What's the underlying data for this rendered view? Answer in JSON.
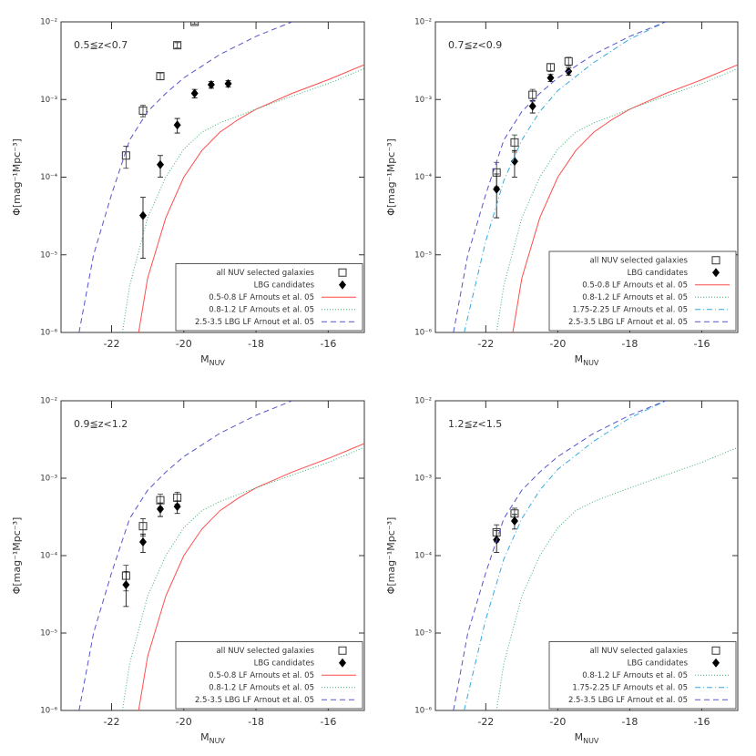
{
  "chart_data": [
    {
      "type": "scatter",
      "annotation": "0.5≦z<0.7",
      "xlabel": "M",
      "xlabel_sub": "NUV",
      "ylabel": "Φ[mag⁻¹Mpc⁻³]",
      "xlim": [
        -23.4,
        -15
      ],
      "xticks": [
        -22,
        -20,
        -18,
        -16
      ],
      "ylim": [
        1e-06,
        0.01
      ],
      "log_y": true,
      "legend": "lower right",
      "yticks": [
        {
          "value": 1e-06,
          "label": "10⁻⁶"
        },
        {
          "value": 1e-05,
          "label": "10⁻⁵"
        },
        {
          "value": 0.0001,
          "label": "10⁻⁴"
        },
        {
          "value": 0.001,
          "label": "10⁻³"
        },
        {
          "value": 0.01,
          "label": "10⁻²"
        }
      ],
      "series": [
        {
          "name": "all NUV selected galaxies",
          "color": "#333333",
          "marker": "square",
          "x": [
            -21.6,
            -21.13,
            -20.65,
            -20.18,
            -19.7
          ],
          "values": [
            0.00019,
            0.00072,
            0.002,
            0.005,
            0.01
          ],
          "errors": [
            6e-05,
            0.00012,
            0.0002,
            0.0004,
            0.0006
          ]
        },
        {
          "name": "LBG candidates",
          "color": "#000000",
          "marker": "diamond",
          "x": [
            -21.13,
            -20.65,
            -20.18,
            -19.7,
            -19.24,
            -18.77
          ],
          "values": [
            3.2e-05,
            0.000145,
            0.00047,
            0.0012,
            0.00155,
            0.0016
          ],
          "errors": [
            2.3e-05,
            4.5e-05,
            0.0001,
            0.00015,
            0.00015,
            0.00015
          ]
        },
        {
          "name": "0.5-0.8 LF Arnouts et al. 05",
          "color": "#ff4d4d",
          "dash": "solid",
          "x": [
            -21.25,
            -21,
            -20.5,
            -20,
            -19.5,
            -19,
            -18.5,
            -18,
            -17,
            -16,
            -15
          ],
          "values": [
            1e-06,
            5e-06,
            3e-05,
            0.0001,
            0.00022,
            0.00038,
            0.00055,
            0.00075,
            0.0012,
            0.0018,
            0.0028
          ]
        },
        {
          "name": "0.8-1.2 LF Arnouts et al. 05",
          "color": "#3cb371",
          "dash": "dotted",
          "x": [
            -21.7,
            -21.5,
            -21,
            -20.5,
            -20,
            -19.5,
            -19,
            -18,
            -17,
            -16,
            -15
          ],
          "values": [
            1e-06,
            4e-06,
            3e-05,
            0.0001,
            0.00023,
            0.00038,
            0.0005,
            0.00075,
            0.0011,
            0.0016,
            0.0025
          ]
        },
        {
          "name": "2.5-3.5 LBG LF Arnout et al. 05",
          "color": "#5555cc",
          "dash": "dashed",
          "x": [
            -22.9,
            -22.5,
            -22,
            -21.5,
            -21,
            -20.5,
            -20,
            -19,
            -18,
            -17
          ],
          "values": [
            1e-06,
            1e-05,
            6e-05,
            0.0003,
            0.0007,
            0.0012,
            0.0019,
            0.0038,
            0.0065,
            0.01
          ]
        }
      ]
    },
    {
      "type": "scatter",
      "annotation": "0.7≦z<0.9",
      "xlabel": "M",
      "xlabel_sub": "NUV",
      "ylabel": "Φ[mag⁻¹Mpc⁻³]",
      "xlim": [
        -23.4,
        -15
      ],
      "xticks": [
        -22,
        -20,
        -18,
        -16
      ],
      "ylim": [
        1e-06,
        0.01
      ],
      "log_y": true,
      "legend": "lower right",
      "yticks": [
        {
          "value": 1e-06,
          "label": "10⁻⁶"
        },
        {
          "value": 1e-05,
          "label": "10⁻⁵"
        },
        {
          "value": 0.0001,
          "label": "10⁻⁴"
        },
        {
          "value": 0.001,
          "label": "10⁻³"
        },
        {
          "value": 0.01,
          "label": "10⁻²"
        }
      ],
      "series": [
        {
          "name": "all NUV selected galaxies",
          "color": "#333333",
          "marker": "square",
          "x": [
            -21.7,
            -21.2,
            -20.7,
            -20.2,
            -19.7
          ],
          "values": [
            0.000115,
            0.00028,
            0.00115,
            0.0026,
            0.0031
          ],
          "errors": [
            4e-05,
            7e-05,
            0.0002,
            0.0003,
            0.0004
          ]
        },
        {
          "name": "LBG candidates",
          "color": "#000000",
          "marker": "diamond",
          "x": [
            -21.7,
            -21.2,
            -20.7,
            -20.2,
            -19.7
          ],
          "values": [
            7e-05,
            0.00016,
            0.00082,
            0.0019,
            0.0023
          ],
          "errors": [
            4e-05,
            6e-05,
            0.00015,
            0.0002,
            0.00025
          ]
        },
        {
          "name": "0.5-0.8 LF Arnouts et al. 05",
          "color": "#ff4d4d",
          "dash": "solid",
          "x": [
            -21.25,
            -21,
            -20.5,
            -20,
            -19.5,
            -19,
            -18.5,
            -18,
            -17,
            -16,
            -15
          ],
          "values": [
            1e-06,
            5e-06,
            3e-05,
            0.0001,
            0.00022,
            0.00038,
            0.00055,
            0.00075,
            0.0012,
            0.0018,
            0.0028
          ]
        },
        {
          "name": "0.8-1.2 LF Arnouts et al. 05",
          "color": "#3cb371",
          "dash": "dotted",
          "x": [
            -21.7,
            -21.5,
            -21,
            -20.5,
            -20,
            -19.5,
            -19,
            -18,
            -17,
            -16,
            -15
          ],
          "values": [
            1e-06,
            4e-06,
            3e-05,
            0.0001,
            0.00023,
            0.00038,
            0.0005,
            0.00075,
            0.0011,
            0.0016,
            0.0025
          ]
        },
        {
          "name": "1.75-2.25 LF Arnouts et al. 05",
          "color": "#33aadd",
          "dash": "dashdot",
          "x": [
            -22.6,
            -22,
            -21.5,
            -21,
            -20.5,
            -20,
            -19,
            -18,
            -17
          ],
          "values": [
            1e-06,
            1.5e-05,
            9e-05,
            0.0003,
            0.0007,
            0.0013,
            0.003,
            0.006,
            0.01
          ]
        },
        {
          "name": "2.5-3.5 LBG LF Arnout et al. 05",
          "color": "#5555cc",
          "dash": "dashed",
          "x": [
            -22.9,
            -22.5,
            -22,
            -21.5,
            -21,
            -20.5,
            -20,
            -19,
            -18,
            -17
          ],
          "values": [
            1e-06,
            1e-05,
            6e-05,
            0.0003,
            0.0007,
            0.0012,
            0.0019,
            0.0038,
            0.0065,
            0.01
          ]
        }
      ]
    },
    {
      "type": "scatter",
      "annotation": "0.9≦z<1.2",
      "xlabel": "M",
      "xlabel_sub": "NUV",
      "ylabel": "Φ[mag⁻¹Mpc⁻³]",
      "xlim": [
        -23.4,
        -15
      ],
      "xticks": [
        -22,
        -20,
        -18,
        -16
      ],
      "ylim": [
        1e-06,
        0.01
      ],
      "log_y": true,
      "legend": "lower right",
      "yticks": [
        {
          "value": 1e-06,
          "label": "10⁻⁶"
        },
        {
          "value": 1e-05,
          "label": "10⁻⁵"
        },
        {
          "value": 0.0001,
          "label": "10⁻⁴"
        },
        {
          "value": 0.001,
          "label": "10⁻³"
        },
        {
          "value": 0.01,
          "label": "10⁻²"
        }
      ],
      "series": [
        {
          "name": "all NUV selected galaxies",
          "color": "#333333",
          "marker": "square",
          "x": [
            -21.6,
            -21.13,
            -20.65,
            -20.18
          ],
          "values": [
            5.5e-05,
            0.00024,
            0.00052,
            0.00056
          ],
          "errors": [
            2e-05,
            6e-05,
            0.0001,
            0.0001
          ]
        },
        {
          "name": "LBG candidates",
          "color": "#000000",
          "marker": "diamond",
          "x": [
            -21.6,
            -21.13,
            -20.65,
            -20.18
          ],
          "values": [
            4.2e-05,
            0.00015,
            0.0004,
            0.00043
          ],
          "errors": [
            2e-05,
            4e-05,
            8e-05,
            8e-05
          ]
        },
        {
          "name": "0.5-0.8 LF Arnouts et al. 05",
          "color": "#ff4d4d",
          "dash": "solid",
          "x": [
            -21.25,
            -21,
            -20.5,
            -20,
            -19.5,
            -19,
            -18.5,
            -18,
            -17,
            -16,
            -15
          ],
          "values": [
            1e-06,
            5e-06,
            3e-05,
            0.0001,
            0.00022,
            0.00038,
            0.00055,
            0.00075,
            0.0012,
            0.0018,
            0.0028
          ]
        },
        {
          "name": "0.8-1.2 LF Arnouts et al. 05",
          "color": "#3cb371",
          "dash": "dotted",
          "x": [
            -21.7,
            -21.5,
            -21,
            -20.5,
            -20,
            -19.5,
            -19,
            -18,
            -17,
            -16,
            -15
          ],
          "values": [
            1e-06,
            4e-06,
            3e-05,
            0.0001,
            0.00023,
            0.00038,
            0.0005,
            0.00075,
            0.0011,
            0.0016,
            0.0025
          ]
        },
        {
          "name": "2.5-3.5 LBG LF Arnout et al. 05",
          "color": "#5555cc",
          "dash": "dashed",
          "x": [
            -22.9,
            -22.5,
            -22,
            -21.5,
            -21,
            -20.5,
            -20,
            -19,
            -18,
            -17
          ],
          "values": [
            1e-06,
            1e-05,
            6e-05,
            0.0003,
            0.0007,
            0.0012,
            0.0019,
            0.0038,
            0.0065,
            0.01
          ]
        }
      ]
    },
    {
      "type": "scatter",
      "annotation": "1.2≦z<1.5",
      "xlabel": "M",
      "xlabel_sub": "NUV",
      "ylabel": "Φ[mag⁻¹Mpc⁻³]",
      "xlim": [
        -23.4,
        -15
      ],
      "xticks": [
        -22,
        -20,
        -18,
        -16
      ],
      "ylim": [
        1e-06,
        0.01
      ],
      "log_y": true,
      "legend": "lower right",
      "yticks": [
        {
          "value": 1e-06,
          "label": "10⁻⁶"
        },
        {
          "value": 1e-05,
          "label": "10⁻⁵"
        },
        {
          "value": 0.0001,
          "label": "10⁻⁴"
        },
        {
          "value": 0.001,
          "label": "10⁻³"
        },
        {
          "value": 0.01,
          "label": "10⁻²"
        }
      ],
      "series": [
        {
          "name": "all NUV selected galaxies",
          "color": "#333333",
          "marker": "square",
          "x": [
            -21.7,
            -21.2
          ],
          "values": [
            0.0002,
            0.00035
          ],
          "errors": [
            5e-05,
            6e-05
          ]
        },
        {
          "name": "LBG candidates",
          "color": "#000000",
          "marker": "diamond",
          "x": [
            -21.7,
            -21.2
          ],
          "values": [
            0.00016,
            0.00028
          ],
          "errors": [
            5e-05,
            6e-05
          ]
        },
        {
          "name": "0.8-1.2 LF Arnouts et al. 05",
          "color": "#3cb371",
          "dash": "dotted",
          "x": [
            -21.7,
            -21.5,
            -21,
            -20.5,
            -20,
            -19.5,
            -19,
            -18,
            -17,
            -16,
            -15
          ],
          "values": [
            1e-06,
            4e-06,
            3e-05,
            0.0001,
            0.00023,
            0.00038,
            0.0005,
            0.00075,
            0.0011,
            0.0016,
            0.0025
          ]
        },
        {
          "name": "1.75-2.25 LF Arnouts et al. 05",
          "color": "#33aadd",
          "dash": "dashdot",
          "x": [
            -22.6,
            -22,
            -21.5,
            -21,
            -20.5,
            -20,
            -19,
            -18,
            -17
          ],
          "values": [
            1e-06,
            1.5e-05,
            9e-05,
            0.0003,
            0.0007,
            0.0013,
            0.003,
            0.006,
            0.01
          ]
        },
        {
          "name": "2.5-3.5 LBG LF Arnout et al. 05",
          "color": "#5555cc",
          "dash": "dashed",
          "x": [
            -22.9,
            -22.5,
            -22,
            -21.5,
            -21,
            -20.5,
            -20,
            -19,
            -18,
            -17
          ],
          "values": [
            1e-06,
            1e-05,
            6e-05,
            0.0003,
            0.0007,
            0.0012,
            0.0019,
            0.0038,
            0.0065,
            0.01
          ]
        }
      ]
    }
  ]
}
